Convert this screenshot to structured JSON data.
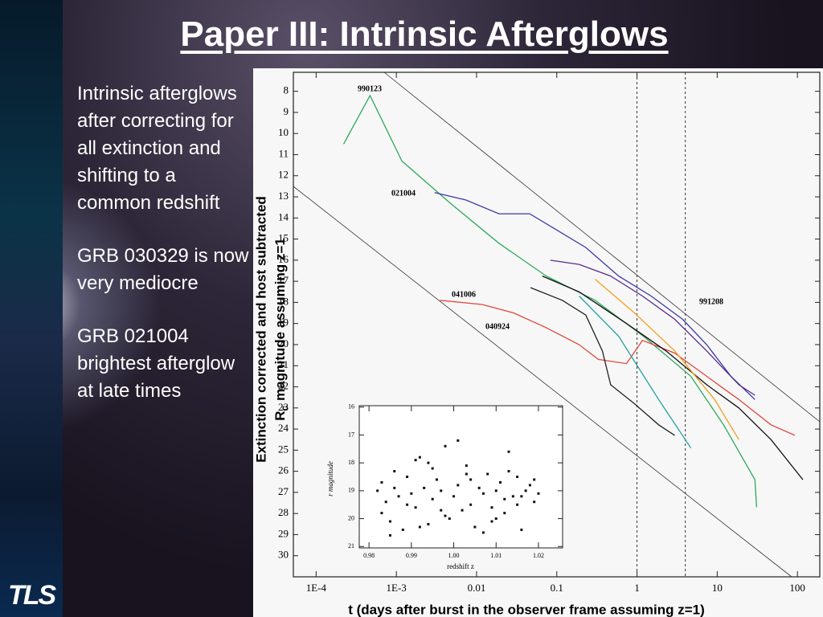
{
  "slide": {
    "title": "Paper III: Intrinsic Afterglows",
    "bullets": [
      "Intrinsic afterglows after correcting for all extinction and shifting to a common redshift",
      "GRB 030329 is now very mediocre",
      "GRB 021004 brightest afterglow at late times"
    ],
    "logo": "TLS"
  },
  "chart_data": [
    {
      "type": "line",
      "ylabel_line1": "Extinction corrected and host subtracted",
      "ylabel_line2": {
        "base": "R",
        "sub": "c",
        "rest": "magnitude assuming z=1"
      },
      "xlabel": "t (days after burst in the observer frame assuming z=1)",
      "xscale": "log",
      "xlim": [
        5.2e-05,
        190
      ],
      "ylim": [
        7.1,
        31
      ],
      "y_inverted": true,
      "xticks": [
        {
          "value": 0.0001,
          "label": "1E-4"
        },
        {
          "value": 0.001,
          "label": "1E-3"
        },
        0.01,
        0.1,
        1,
        10,
        100
      ],
      "yticks": [
        8,
        9,
        10,
        11,
        12,
        13,
        14,
        15,
        16,
        17,
        18,
        19,
        20,
        21,
        22,
        23,
        24,
        25,
        26,
        27,
        28,
        29,
        30
      ],
      "vlines": [
        1,
        4
      ],
      "series": [
        {
          "name": "990123",
          "color": "#2ca85a",
          "x": [
            0.00022,
            0.00047,
            0.00117,
            0.0047,
            0.019,
            0.074,
            0.3,
            1.2,
            4.7,
            12,
            29.5,
            31
          ],
          "values": [
            10.5,
            8.2,
            11.3,
            13.3,
            15.2,
            16.75,
            17.9,
            19.6,
            21.5,
            23.8,
            26.4,
            27.7
          ]
        },
        {
          "name": "021004",
          "color": "#3a3aa8",
          "x": [
            0.003,
            0.0074,
            0.019,
            0.046,
            0.093,
            0.23,
            0.59,
            1.5,
            3.7,
            7.4,
            14.8,
            29.5
          ],
          "values": [
            12.8,
            13.15,
            13.8,
            13.8,
            14.5,
            15.4,
            16.75,
            17.7,
            18.8,
            20,
            21.5,
            22.6
          ]
        },
        {
          "name": "041006",
          "color": "#e0483c",
          "x": [
            0.0035,
            0.0117,
            0.029,
            0.074,
            0.19,
            0.33,
            0.74,
            1.17,
            2.95,
            7.4,
            18.6,
            46.8,
            93
          ],
          "values": [
            17.9,
            18.1,
            18.5,
            19.2,
            20,
            20.7,
            20.9,
            19.8,
            20.4,
            21.5,
            22.6,
            23.8,
            24.3
          ]
        },
        {
          "name": "040924",
          "color": "#222222",
          "x": [
            0.047,
            0.117,
            0.23,
            0.37,
            0.47,
            0.93,
            1.86,
            2.95
          ],
          "values": [
            17.3,
            17.9,
            18.6,
            20.3,
            21.9,
            22.8,
            23.8,
            24.3
          ]
        },
        {
          "name": "991208",
          "color": "#5a2a8a",
          "x": [
            0.083,
            0.19,
            0.47,
            1.17,
            2.95,
            7.4,
            18.6,
            29.5
          ],
          "values": [
            16,
            16.2,
            16.75,
            17.7,
            18.8,
            20.3,
            21.9,
            22.4
          ]
        },
        {
          "color": "#111111",
          "x": [
            0.066,
            0.19,
            0.74,
            2.3,
            7.4,
            18.6,
            46.8,
            117
          ],
          "values": [
            16.75,
            17.5,
            19,
            20.3,
            21.9,
            23,
            24.5,
            26.4
          ]
        },
        {
          "color": "#f0a020",
          "x": [
            0.3,
            0.93,
            2.95,
            9.3,
            18.6
          ],
          "values": [
            16.9,
            18.5,
            20.3,
            22.6,
            24.5
          ]
        },
        {
          "color": "#20a0a0",
          "x": [
            0.19,
            0.59,
            1.86,
            4.7
          ],
          "values": [
            17.7,
            19.6,
            22.6,
            24.9
          ]
        }
      ]
    },
    {
      "type": "scatter",
      "xlabel": "redshift z",
      "ylabel": "r magnitude",
      "xlim": [
        0.9777,
        1.0257
      ],
      "ylim": [
        15.95,
        21.05
      ],
      "y_inverted": true,
      "xticks": [
        0.98,
        0.99,
        {
          "value": 1,
          "label": "1.00"
        },
        1.01,
        1.02
      ],
      "yticks": [
        16,
        17,
        18,
        19,
        20,
        21
      ],
      "color": "#111111",
      "x": [
        0.982,
        0.983,
        0.984,
        0.985,
        0.986,
        0.987,
        0.988,
        0.989,
        0.99,
        0.991,
        0.992,
        0.993,
        0.994,
        0.995,
        0.996,
        0.997,
        0.998,
        0.999,
        1.0,
        1.001,
        1.002,
        1.003,
        1.004,
        1.005,
        1.006,
        1.007,
        1.008,
        1.009,
        1.01,
        1.011,
        1.012,
        1.013,
        1.014,
        1.015,
        1.016,
        1.017,
        1.018,
        1.019,
        1.02,
        0.983,
        0.986,
        0.989,
        0.992,
        0.995,
        0.998,
        1.001,
        1.004,
        1.007,
        1.01,
        1.013,
        1.016,
        1.019,
        0.985,
        0.991,
        0.997,
        1.003,
        1.009,
        1.015,
        0.994,
        1.012
      ],
      "values": [
        19.0,
        18.7,
        19.4,
        20.1,
        18.9,
        19.2,
        20.4,
        18.5,
        19.1,
        19.6,
        17.8,
        18.9,
        20.2,
        19.3,
        18.6,
        19.0,
        17.4,
        20.0,
        19.2,
        18.8,
        19.7,
        18.1,
        19.5,
        20.3,
        18.9,
        19.1,
        18.4,
        19.6,
        20.0,
        18.7,
        19.3,
        17.6,
        19.2,
        18.5,
        20.4,
        19.0,
        18.8,
        19.4,
        19.1,
        19.8,
        18.3,
        19.5,
        20.3,
        18.2,
        19.9,
        17.2,
        18.6,
        20.5,
        19.0,
        18.3,
        19.2,
        18.6,
        20.6,
        17.9,
        19.7,
        18.4,
        20.1,
        19.5,
        18.0,
        19.8
      ]
    }
  ]
}
